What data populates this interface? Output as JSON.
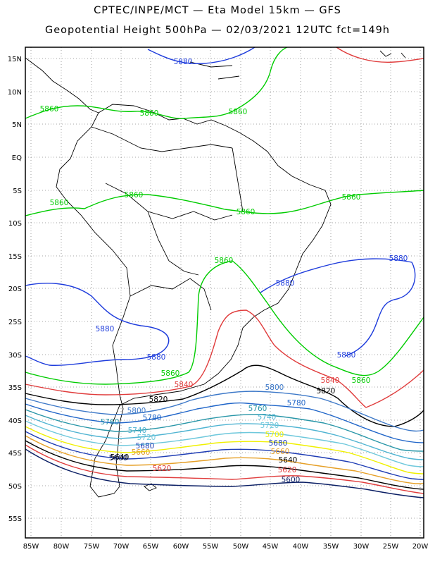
{
  "header": {
    "line1": "CPTEC/INPE/MCT —  Eta Model 15km — GFS",
    "line2": "Geopotential Height 500hPa — 02/03/2021 12UTC fct=149h"
  },
  "axes": {
    "lat_labels": [
      "15N",
      "10N",
      "5N",
      "EQ",
      "5S",
      "10S",
      "15S",
      "20S",
      "25S",
      "30S",
      "35S",
      "40S",
      "45S",
      "50S",
      "55S"
    ],
    "lon_labels": [
      "85W",
      "80W",
      "75W",
      "70W",
      "65W",
      "60W",
      "55W",
      "50W",
      "45W",
      "40W",
      "35W",
      "30W",
      "25W",
      "20W"
    ]
  },
  "contour_colors": {
    "5860": "#00cc00",
    "5880": "#1e3cdc",
    "5840": "#e03c3c",
    "5820": "#000000",
    "5800": "#3c78c8",
    "5780": "#1e64c8",
    "5760": "#2896a8",
    "5740": "#50b4d2",
    "5720": "#6ec8dc",
    "5700": "#f0f000",
    "5680": "#1e3cb4",
    "5660": "#e6a028",
    "5640": "#000000",
    "5620": "#e03c3c",
    "5600": "#0a1e64"
  },
  "contour_labels": [
    {
      "text": "5880",
      "color": "5880"
    },
    {
      "text": "5860",
      "color": "5860"
    },
    {
      "text": "5860",
      "color": "5860"
    },
    {
      "text": "5860",
      "color": "5860"
    },
    {
      "text": "5860",
      "color": "5860"
    },
    {
      "text": "5860",
      "color": "5860"
    },
    {
      "text": "5860",
      "color": "5860"
    },
    {
      "text": "5860",
      "color": "5860"
    },
    {
      "text": "5860",
      "color": "5860"
    },
    {
      "text": "5880",
      "color": "5880"
    },
    {
      "text": "5880",
      "color": "5880"
    },
    {
      "text": "5880",
      "color": "5880"
    },
    {
      "text": "5880",
      "color": "5880"
    },
    {
      "text": "5880",
      "color": "5880"
    },
    {
      "text": "5860",
      "color": "5860"
    },
    {
      "text": "5860",
      "color": "5860"
    },
    {
      "text": "5840",
      "color": "5840"
    },
    {
      "text": "5840",
      "color": "5840"
    },
    {
      "text": "5820",
      "color": "5820"
    },
    {
      "text": "5820",
      "color": "5820"
    },
    {
      "text": "5800",
      "color": "5800"
    },
    {
      "text": "5800",
      "color": "5800"
    },
    {
      "text": "5780",
      "color": "5780"
    },
    {
      "text": "5780",
      "color": "5780"
    },
    {
      "text": "5760",
      "color": "5760"
    },
    {
      "text": "5760",
      "color": "5760"
    },
    {
      "text": "5740",
      "color": "5740"
    },
    {
      "text": "5740",
      "color": "5740"
    },
    {
      "text": "5720",
      "color": "5720"
    },
    {
      "text": "5720",
      "color": "5720"
    },
    {
      "text": "5700",
      "color": "5700"
    },
    {
      "text": "5680",
      "color": "5680"
    },
    {
      "text": "5680",
      "color": "5680"
    },
    {
      "text": "5660",
      "color": "5660"
    },
    {
      "text": "5660",
      "color": "5660"
    },
    {
      "text": "5640",
      "color": "5640"
    },
    {
      "text": "5640",
      "color": "5640"
    },
    {
      "text": "5620",
      "color": "5620"
    },
    {
      "text": "5620",
      "color": "5620"
    },
    {
      "text": "5600",
      "color": "5600"
    },
    {
      "text": "5600",
      "color": "5600"
    }
  ]
}
